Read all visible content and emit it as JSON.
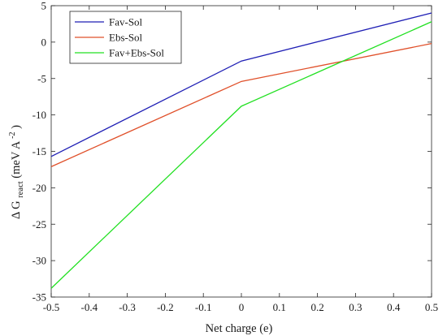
{
  "chart_data": {
    "type": "line",
    "xlabel": "Net charge (e)",
    "ylabel": {
      "prefix": "Δ G",
      "subscript": "react",
      "units_before": "(meV A",
      "units_exponent": "-2",
      "units_after": ")"
    },
    "xlim": [
      -0.5,
      0.5
    ],
    "ylim": [
      -35,
      5
    ],
    "xticks": [
      -0.5,
      -0.4,
      -0.3,
      -0.2,
      -0.1,
      0,
      0.1,
      0.2,
      0.3,
      0.4,
      0.5
    ],
    "xtick_labels": [
      "-0.5",
      "-0.4",
      "-0.3",
      "-0.2",
      "-0.1",
      "0",
      "0.1",
      "0.2",
      "0.3",
      "0.4",
      "0.5"
    ],
    "yticks": [
      5,
      0,
      -5,
      -10,
      -15,
      -20,
      -25,
      -30,
      -35
    ],
    "ytick_labels": [
      "5",
      "0",
      "-5",
      "-10",
      "-15",
      "-20",
      "-25",
      "-30",
      "-35"
    ],
    "grid": false,
    "legend_position": "top-left",
    "series": [
      {
        "name": "Fav-Sol",
        "color": "#1f1fb5",
        "x": [
          -0.5,
          0,
          0.5
        ],
        "y": [
          -15.7,
          -2.6,
          4.0
        ]
      },
      {
        "name": "Ebs-Sol",
        "color": "#e0502a",
        "x": [
          -0.5,
          0,
          0.5
        ],
        "y": [
          -17.1,
          -5.4,
          -0.2
        ]
      },
      {
        "name": "Fav+Ebs-Sol",
        "color": "#22e022",
        "x": [
          -0.5,
          0,
          0.5
        ],
        "y": [
          -33.8,
          -8.8,
          2.8
        ]
      }
    ]
  }
}
